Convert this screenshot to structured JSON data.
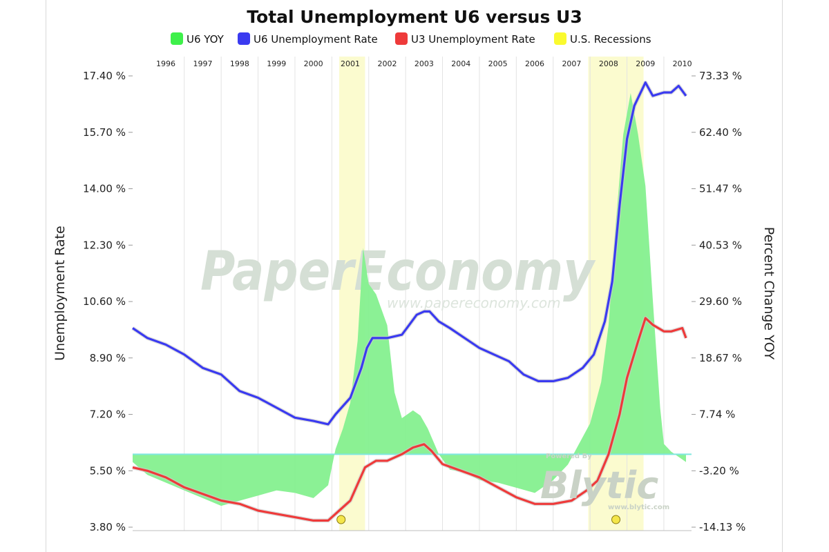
{
  "page": {
    "watermark": "PaperEconomy",
    "watermark_url": "www.papereconomy.com",
    "brand_powered": "Powered By",
    "brand_name": "Blytic",
    "brand_url": "www.blytic.com"
  },
  "colors": {
    "u6_yoy": "#85f08f",
    "u6_yoy_legend": "#3ef04a",
    "u6_rate": "#3a3af0",
    "u3_rate": "#ee3a3a",
    "recession": "#fbfbcf",
    "recession_legend": "#fafa2e",
    "grid": "#e2e2e2",
    "zero_line": "#7fe7df"
  },
  "chart_data": {
    "type": "line",
    "title": "Total Unemployment U6 versus U3",
    "legend": [
      {
        "name": "U6 YOY",
        "color_key": "u6_yoy_legend"
      },
      {
        "name": "U6 Unemployment Rate",
        "color_key": "u6_rate"
      },
      {
        "name": "U3 Unemployment Rate",
        "color_key": "u3_rate"
      },
      {
        "name": "U.S. Recessions",
        "color_key": "recession_legend"
      }
    ],
    "legend_position": "top",
    "x_range": [
      1995.6,
      2010.75
    ],
    "x_year_labels": [
      "1996",
      "1997",
      "1998",
      "1999",
      "2000",
      "2001",
      "2002",
      "2003",
      "2004",
      "2005",
      "2006",
      "2007",
      "2008",
      "2009",
      "2010"
    ],
    "left_axis": {
      "label": "Unemployment Rate",
      "range": [
        3.8,
        17.4
      ],
      "ticks": [
        "3.80 %",
        "5.50 %",
        "7.20 %",
        "8.90 %",
        "10.60 %",
        "12.30 %",
        "14.00 %",
        "15.70 %",
        "17.40 %"
      ]
    },
    "right_axis": {
      "label": "Percent Change YOY",
      "range": [
        -14.13,
        73.33
      ],
      "ticks": [
        "-14.13 %",
        "-3.20 %",
        "7.74 %",
        "18.67 %",
        "29.60 %",
        "40.53 %",
        "51.47 %",
        "62.40 %",
        "73.33 %"
      ]
    },
    "grid": {
      "vertical": true,
      "horizontal": false
    },
    "recessions": [
      {
        "start": 2001.2,
        "end": 2001.9
      },
      {
        "start": 2007.95,
        "end": 2009.45
      }
    ],
    "recession_markers": [
      2001.25,
      2008.7
    ],
    "series": [
      {
        "name": "U6 Unemployment Rate",
        "color_key": "u6_rate",
        "axis": "left",
        "points": [
          [
            1995.6,
            9.8
          ],
          [
            1996.0,
            9.5
          ],
          [
            1996.5,
            9.3
          ],
          [
            1997.0,
            9.0
          ],
          [
            1997.5,
            8.6
          ],
          [
            1998.0,
            8.4
          ],
          [
            1998.5,
            7.9
          ],
          [
            1999.0,
            7.7
          ],
          [
            1999.5,
            7.4
          ],
          [
            2000.0,
            7.1
          ],
          [
            2000.5,
            7.0
          ],
          [
            2000.9,
            6.9
          ],
          [
            2001.1,
            7.2
          ],
          [
            2001.5,
            7.7
          ],
          [
            2001.8,
            8.6
          ],
          [
            2001.95,
            9.2
          ],
          [
            2002.1,
            9.5
          ],
          [
            2002.5,
            9.5
          ],
          [
            2002.9,
            9.6
          ],
          [
            2003.1,
            9.9
          ],
          [
            2003.3,
            10.2
          ],
          [
            2003.5,
            10.3
          ],
          [
            2003.65,
            10.3
          ],
          [
            2003.9,
            10.0
          ],
          [
            2004.2,
            9.8
          ],
          [
            2004.6,
            9.5
          ],
          [
            2005.0,
            9.2
          ],
          [
            2005.4,
            9.0
          ],
          [
            2005.8,
            8.8
          ],
          [
            2006.2,
            8.4
          ],
          [
            2006.6,
            8.2
          ],
          [
            2007.0,
            8.2
          ],
          [
            2007.4,
            8.3
          ],
          [
            2007.8,
            8.6
          ],
          [
            2008.1,
            9.0
          ],
          [
            2008.4,
            10.0
          ],
          [
            2008.6,
            11.2
          ],
          [
            2008.8,
            13.5
          ],
          [
            2009.0,
            15.5
          ],
          [
            2009.2,
            16.5
          ],
          [
            2009.5,
            17.2
          ],
          [
            2009.7,
            16.8
          ],
          [
            2010.0,
            16.9
          ],
          [
            2010.2,
            16.9
          ],
          [
            2010.4,
            17.1
          ],
          [
            2010.6,
            16.8
          ]
        ]
      },
      {
        "name": "U3 Unemployment Rate",
        "color_key": "u3_rate",
        "axis": "left",
        "points": [
          [
            1995.6,
            5.6
          ],
          [
            1996.0,
            5.5
          ],
          [
            1996.5,
            5.3
          ],
          [
            1997.0,
            5.0
          ],
          [
            1997.5,
            4.8
          ],
          [
            1998.0,
            4.6
          ],
          [
            1998.5,
            4.5
          ],
          [
            1999.0,
            4.3
          ],
          [
            1999.5,
            4.2
          ],
          [
            2000.0,
            4.1
          ],
          [
            2000.5,
            4.0
          ],
          [
            2000.9,
            4.0
          ],
          [
            2001.2,
            4.3
          ],
          [
            2001.5,
            4.6
          ],
          [
            2001.9,
            5.6
          ],
          [
            2002.2,
            5.8
          ],
          [
            2002.5,
            5.8
          ],
          [
            2002.9,
            6.0
          ],
          [
            2003.2,
            6.2
          ],
          [
            2003.5,
            6.3
          ],
          [
            2003.7,
            6.1
          ],
          [
            2004.0,
            5.7
          ],
          [
            2004.5,
            5.5
          ],
          [
            2005.0,
            5.3
          ],
          [
            2005.5,
            5.0
          ],
          [
            2006.0,
            4.7
          ],
          [
            2006.5,
            4.5
          ],
          [
            2007.0,
            4.5
          ],
          [
            2007.5,
            4.6
          ],
          [
            2007.9,
            4.9
          ],
          [
            2008.2,
            5.2
          ],
          [
            2008.5,
            6.0
          ],
          [
            2008.8,
            7.2
          ],
          [
            2009.0,
            8.3
          ],
          [
            2009.3,
            9.4
          ],
          [
            2009.5,
            10.1
          ],
          [
            2009.7,
            9.9
          ],
          [
            2010.0,
            9.7
          ],
          [
            2010.2,
            9.7
          ],
          [
            2010.5,
            9.8
          ],
          [
            2010.6,
            9.5
          ]
        ]
      },
      {
        "name": "U6 YOY",
        "color_key": "u6_yoy",
        "axis": "right",
        "fill": "area",
        "points": [
          [
            1995.6,
            -1.5
          ],
          [
            1996.0,
            -4.0
          ],
          [
            1996.5,
            -5.5
          ],
          [
            1997.0,
            -7.0
          ],
          [
            1997.5,
            -8.5
          ],
          [
            1998.0,
            -10.0
          ],
          [
            1998.5,
            -9.0
          ],
          [
            1999.0,
            -8.0
          ],
          [
            1999.5,
            -7.0
          ],
          [
            2000.0,
            -7.5
          ],
          [
            2000.5,
            -8.5
          ],
          [
            2000.9,
            -6.0
          ],
          [
            2001.1,
            1.0
          ],
          [
            2001.3,
            5.0
          ],
          [
            2001.5,
            10.0
          ],
          [
            2001.7,
            22.0
          ],
          [
            2001.85,
            40.0
          ],
          [
            2002.0,
            33.0
          ],
          [
            2002.2,
            31.0
          ],
          [
            2002.5,
            25.0
          ],
          [
            2002.7,
            12.0
          ],
          [
            2002.9,
            7.0
          ],
          [
            2003.2,
            8.5
          ],
          [
            2003.4,
            7.5
          ],
          [
            2003.6,
            5.0
          ],
          [
            2003.9,
            0.0
          ],
          [
            2004.2,
            -3.0
          ],
          [
            2004.6,
            -3.5
          ],
          [
            2005.0,
            -5.0
          ],
          [
            2005.5,
            -5.5
          ],
          [
            2006.0,
            -6.5
          ],
          [
            2006.5,
            -7.5
          ],
          [
            2007.0,
            -5.0
          ],
          [
            2007.4,
            -2.0
          ],
          [
            2007.7,
            2.0
          ],
          [
            2008.0,
            6.0
          ],
          [
            2008.3,
            14.0
          ],
          [
            2008.5,
            25.0
          ],
          [
            2008.7,
            45.0
          ],
          [
            2008.9,
            62.0
          ],
          [
            2009.1,
            70.0
          ],
          [
            2009.3,
            62.0
          ],
          [
            2009.5,
            52.0
          ],
          [
            2009.7,
            30.0
          ],
          [
            2009.9,
            9.0
          ],
          [
            2010.0,
            2.0
          ],
          [
            2010.2,
            0.5
          ],
          [
            2010.4,
            -0.5
          ],
          [
            2010.6,
            -1.5
          ]
        ]
      }
    ]
  }
}
